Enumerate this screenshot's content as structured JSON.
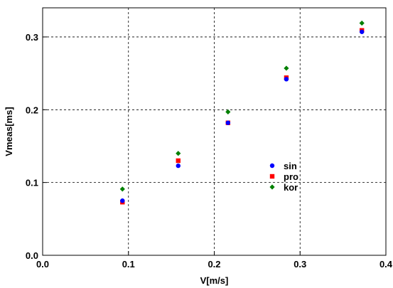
{
  "chart_data": {
    "type": "scatter",
    "xlabel": "V[m/s]",
    "ylabel": "Vmeas[ms]",
    "xlim": [
      0.0,
      0.4
    ],
    "ylim": [
      0.0,
      0.34
    ],
    "x_ticks": [
      "0.0",
      "0.1",
      "0.2",
      "0.3",
      "0.4"
    ],
    "y_ticks": [
      "0.0",
      "0.1",
      "0.2",
      "0.3"
    ],
    "grid": true,
    "legend_position": "center-right",
    "series": [
      {
        "name": "sin",
        "color": "#0000ff",
        "marker": "circle",
        "points": [
          {
            "x": 0.093,
            "y": 0.075
          },
          {
            "x": 0.158,
            "y": 0.123
          },
          {
            "x": 0.216,
            "y": 0.182
          },
          {
            "x": 0.284,
            "y": 0.242
          },
          {
            "x": 0.372,
            "y": 0.307
          }
        ]
      },
      {
        "name": "pro",
        "color": "#ff0000",
        "marker": "square",
        "points": [
          {
            "x": 0.093,
            "y": 0.073
          },
          {
            "x": 0.158,
            "y": 0.13
          },
          {
            "x": 0.216,
            "y": 0.182
          },
          {
            "x": 0.284,
            "y": 0.244
          },
          {
            "x": 0.372,
            "y": 0.309
          }
        ]
      },
      {
        "name": "kor",
        "color": "#008000",
        "marker": "diamond",
        "points": [
          {
            "x": 0.093,
            "y": 0.091
          },
          {
            "x": 0.158,
            "y": 0.14
          },
          {
            "x": 0.216,
            "y": 0.197
          },
          {
            "x": 0.284,
            "y": 0.257
          },
          {
            "x": 0.372,
            "y": 0.319
          }
        ]
      }
    ]
  }
}
